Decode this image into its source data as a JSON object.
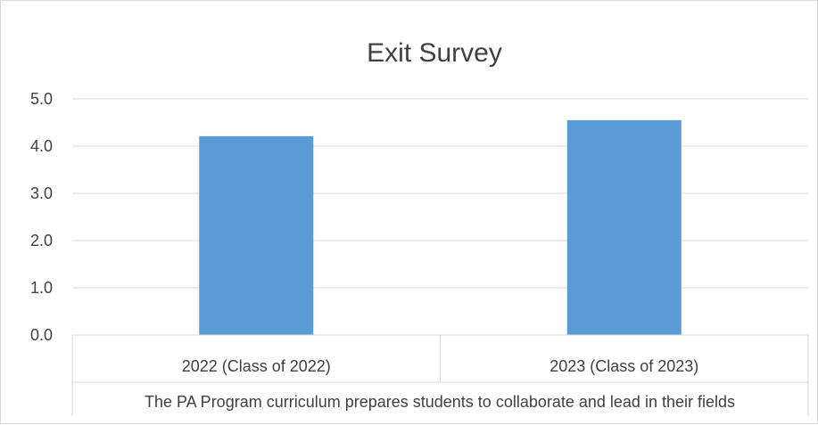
{
  "chart_data": {
    "type": "bar",
    "title": "Exit Survey",
    "categories": [
      "2022 (Class of 2022)",
      "2023 (Class of 2023)"
    ],
    "group_label": "The PA Program curriculum prepares students to collaborate and lead in their fields",
    "series": [
      {
        "values": [
          4.21,
          4.55
        ]
      }
    ],
    "y_ticks": [
      "0.0",
      "1.0",
      "2.0",
      "3.0",
      "4.0",
      "5.0"
    ],
    "ylim": [
      0,
      5
    ],
    "grid": true,
    "legend": "none",
    "bar_color": "#5b9bd5",
    "grid_color": "#d9d9d9",
    "text_color": "#404040"
  }
}
